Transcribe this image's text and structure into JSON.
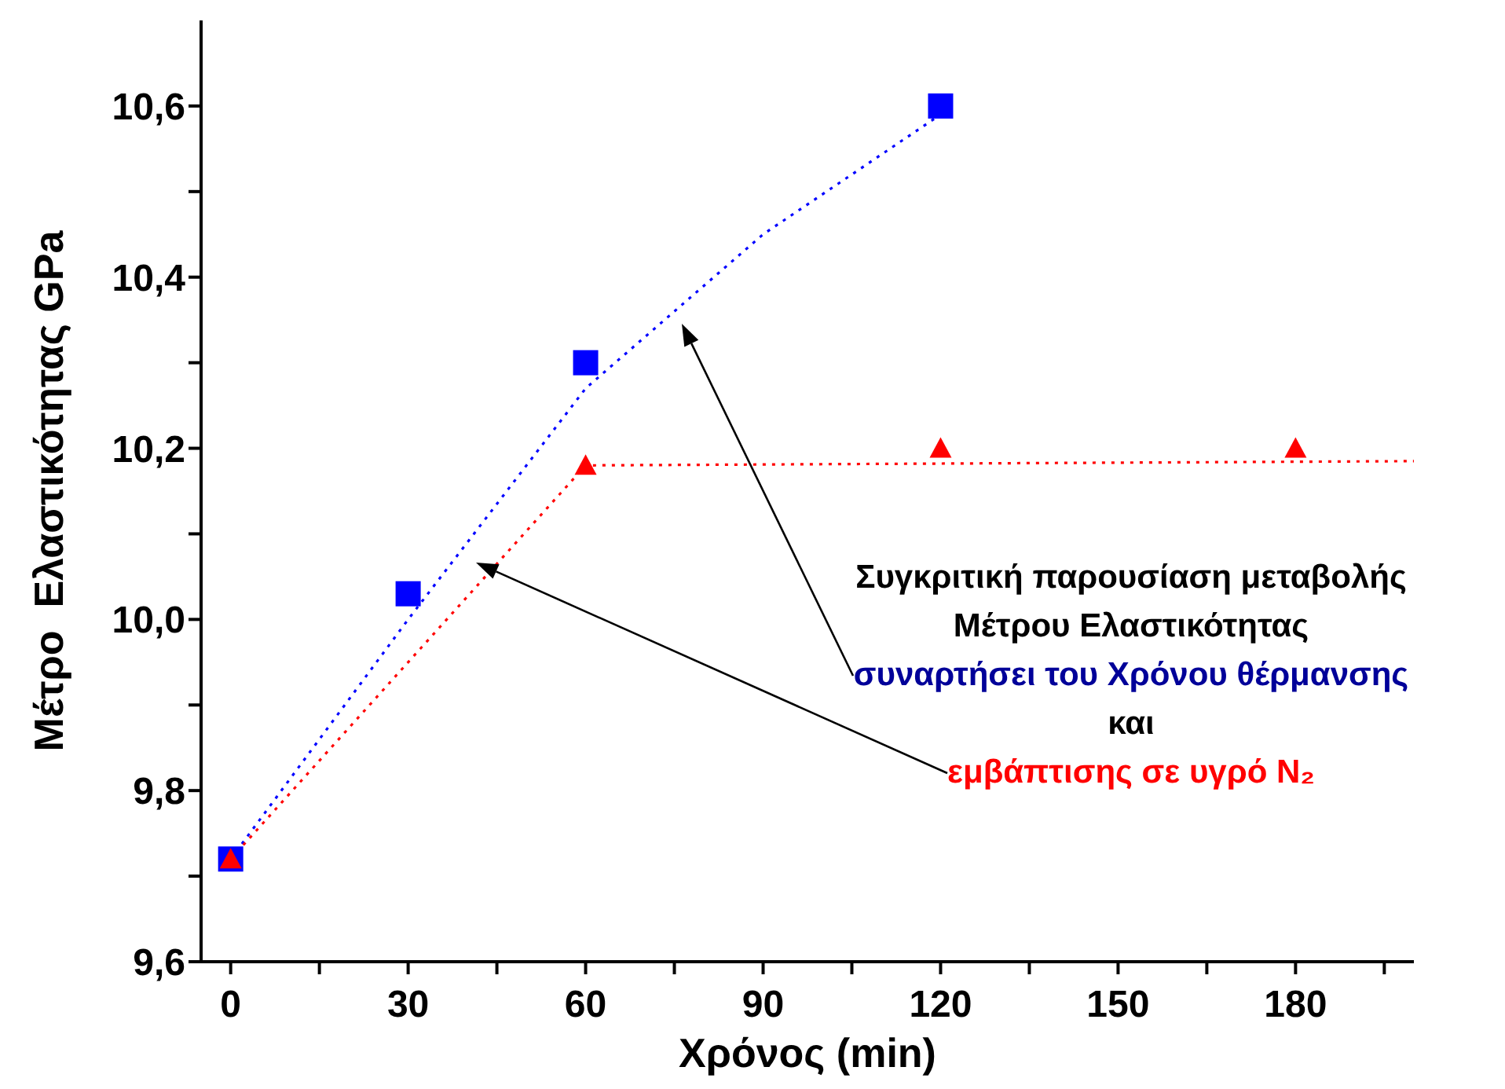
{
  "chart_data": {
    "type": "scatter",
    "xlabel": "Χρόνος  (min)",
    "ylabel": "Μέτρο  Ελαστικότητας GPa",
    "xlim": [
      -5,
      200
    ],
    "xticks": [
      0,
      {
        "value": 15,
        "label": null
      },
      30,
      {
        "value": 45,
        "label": null
      },
      60,
      {
        "value": 75,
        "label": null
      },
      90,
      {
        "value": 105,
        "label": null
      },
      120,
      {
        "value": 135,
        "label": null
      },
      150,
      {
        "value": 165,
        "label": null
      },
      180,
      {
        "value": 195,
        "label": null
      }
    ],
    "ylim": [
      9.6,
      10.7
    ],
    "yticks": [
      {
        "value": 9.6,
        "label": "9,6"
      },
      {
        "value": 9.7,
        "label": null
      },
      {
        "value": 9.8,
        "label": "9,8"
      },
      {
        "value": 9.9,
        "label": null
      },
      {
        "value": 10.0,
        "label": "10,0"
      },
      {
        "value": 10.1,
        "label": null
      },
      {
        "value": 10.2,
        "label": "10,2"
      },
      {
        "value": 10.3,
        "label": null
      },
      {
        "value": 10.4,
        "label": "10,4"
      },
      {
        "value": 10.5,
        "label": null
      },
      {
        "value": 10.6,
        "label": "10,6"
      }
    ],
    "grid": false,
    "series": [
      {
        "type": "line",
        "color": "#0000ff",
        "x": [
          0,
          30,
          60,
          90,
          120
        ],
        "values": [
          9.72,
          10.0,
          10.27,
          10.45,
          10.59
        ],
        "marker": "none",
        "line_style": "dotted"
      },
      {
        "type": "line",
        "color": "#ff0000",
        "x": [
          0,
          60,
          200
        ],
        "values": [
          9.72,
          10.18,
          10.185
        ],
        "marker": "none",
        "line_style": "dotted"
      },
      {
        "color": "#0000ff",
        "x": [
          0,
          30,
          60,
          120
        ],
        "values": [
          9.72,
          10.03,
          10.3,
          10.6
        ],
        "marker": "square"
      },
      {
        "color": "#ff0000",
        "x": [
          0,
          60,
          120,
          180
        ],
        "values": [
          9.72,
          10.18,
          10.2,
          10.2
        ],
        "marker": "triangle"
      }
    ],
    "annotations": [
      "Συγκριτική παρουσίαση μεταβολής",
      "Μέτρου Ελαστικότητας",
      "συναρτήσει του Χρόνου θέρμανσης",
      "και",
      "εμβάπτισης σε υγρό N₂"
    ]
  }
}
